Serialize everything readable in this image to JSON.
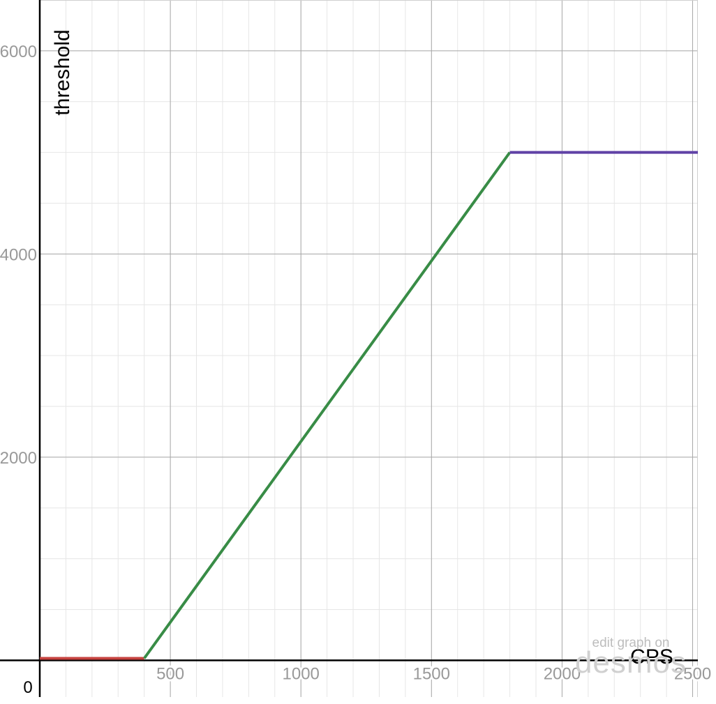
{
  "chart_data": {
    "type": "line",
    "xlabel": "CPS",
    "ylabel": "threshold",
    "origin_label": "0",
    "xlim": [
      0,
      2520
    ],
    "ylim": [
      -100,
      6500
    ],
    "x_ticks": [
      {
        "value": 500,
        "label": "500"
      },
      {
        "value": 1000,
        "label": "1000"
      },
      {
        "value": 1500,
        "label": "1500"
      },
      {
        "value": 2000,
        "label": "2000"
      },
      {
        "value": 2500,
        "label": "2500"
      }
    ],
    "y_ticks": [
      {
        "value": 2000,
        "label": "2000"
      },
      {
        "value": 4000,
        "label": "4000"
      },
      {
        "value": 6000,
        "label": "6000"
      }
    ],
    "x_major_step": 500,
    "x_minor_step": 100,
    "y_major_step": 2000,
    "y_minor_step": 500,
    "grid": true,
    "series": [
      {
        "color": "#c74440",
        "x": [
          0,
          400
        ],
        "y": [
          20,
          20
        ]
      },
      {
        "color": "#388c46",
        "x": [
          400,
          1800
        ],
        "y": [
          20,
          5000
        ]
      },
      {
        "color": "#6042a6",
        "x": [
          1800,
          2520
        ],
        "y": [
          5000,
          5000
        ]
      }
    ]
  },
  "branding": {
    "edit_text": "edit graph on",
    "logo_text": "desmos"
  }
}
